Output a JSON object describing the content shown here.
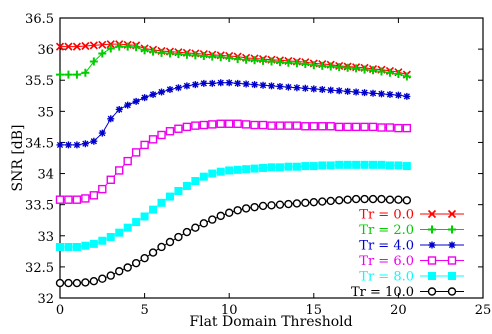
{
  "chart_data": {
    "type": "line",
    "title": "",
    "xlabel": "Flat Domain Threshold",
    "ylabel": "SNR [dB]",
    "xlim": [
      0,
      25
    ],
    "ylim": [
      32,
      36.5
    ],
    "xticks": [
      "0",
      "5",
      "10",
      "15",
      "20",
      "25"
    ],
    "yticks": [
      "32",
      "32.5",
      "33",
      "33.5",
      "34",
      "34.5",
      "35",
      "35.5",
      "36",
      "36.5"
    ],
    "grid": false,
    "legend_position": "bottom-right",
    "x": [
      0,
      0.5,
      1,
      1.5,
      2,
      2.5,
      3,
      3.5,
      4,
      4.5,
      5,
      5.5,
      6,
      6.5,
      7,
      7.5,
      8,
      8.5,
      9,
      9.5,
      10,
      10.5,
      11,
      11.5,
      12,
      12.5,
      13,
      13.5,
      14,
      14.5,
      15,
      15.5,
      16,
      16.5,
      17,
      17.5,
      18,
      18.5,
      19,
      19.5,
      20,
      20.5
    ],
    "series": [
      {
        "name": "Tr = 0.0",
        "color": "#ff0000",
        "marker": "x",
        "values": [
          36.04,
          36.04,
          36.04,
          36.05,
          36.06,
          36.07,
          36.08,
          36.08,
          36.07,
          36.06,
          36.01,
          35.99,
          35.97,
          35.96,
          35.95,
          35.94,
          35.93,
          35.92,
          35.91,
          35.9,
          35.89,
          35.88,
          35.86,
          35.85,
          35.84,
          35.83,
          35.82,
          35.81,
          35.8,
          35.79,
          35.77,
          35.76,
          35.75,
          35.73,
          35.72,
          35.71,
          35.7,
          35.68,
          35.67,
          35.65,
          35.63,
          35.59
        ]
      },
      {
        "name": "Tr = 2.0",
        "color": "#00cc00",
        "marker": "plus",
        "values": [
          35.59,
          35.59,
          35.59,
          35.62,
          35.8,
          35.93,
          36.01,
          36.04,
          36.04,
          36.03,
          35.98,
          35.96,
          35.94,
          35.93,
          35.92,
          35.91,
          35.9,
          35.89,
          35.88,
          35.87,
          35.86,
          35.84,
          35.83,
          35.82,
          35.81,
          35.8,
          35.79,
          35.78,
          35.77,
          35.76,
          35.74,
          35.73,
          35.72,
          35.71,
          35.7,
          35.69,
          35.67,
          35.66,
          35.64,
          35.62,
          35.6,
          35.56
        ]
      },
      {
        "name": "Tr = 4.0",
        "color": "#0000cc",
        "marker": "star",
        "values": [
          34.46,
          34.46,
          34.46,
          34.48,
          34.52,
          34.65,
          34.88,
          35.03,
          35.1,
          35.16,
          35.22,
          35.27,
          35.31,
          35.35,
          35.38,
          35.41,
          35.43,
          35.45,
          35.45,
          35.46,
          35.46,
          35.45,
          35.44,
          35.43,
          35.42,
          35.41,
          35.4,
          35.39,
          35.38,
          35.37,
          35.36,
          35.35,
          35.34,
          35.33,
          35.32,
          35.31,
          35.3,
          35.29,
          35.28,
          35.27,
          35.26,
          35.24
        ]
      },
      {
        "name": "Tr = 6.0",
        "color": "#ee00ee",
        "marker": "square",
        "values": [
          33.58,
          33.58,
          33.58,
          33.6,
          33.65,
          33.75,
          33.9,
          34.05,
          34.2,
          34.34,
          34.46,
          34.55,
          34.62,
          34.68,
          34.72,
          34.75,
          34.77,
          34.78,
          34.79,
          34.8,
          34.8,
          34.8,
          34.79,
          34.78,
          34.78,
          34.77,
          34.77,
          34.77,
          34.77,
          34.76,
          34.76,
          34.76,
          34.76,
          34.75,
          34.75,
          34.75,
          34.75,
          34.75,
          34.74,
          34.74,
          34.73,
          34.73
        ]
      },
      {
        "name": "Tr = 8.0",
        "color": "#00ffff",
        "marker": "filled-square",
        "values": [
          32.82,
          32.82,
          32.82,
          32.84,
          32.87,
          32.92,
          32.98,
          33.05,
          33.13,
          33.22,
          33.31,
          33.42,
          33.53,
          33.63,
          33.72,
          33.8,
          33.88,
          33.95,
          34.0,
          34.03,
          34.05,
          34.06,
          34.07,
          34.08,
          34.09,
          34.1,
          34.1,
          34.11,
          34.11,
          34.12,
          34.12,
          34.13,
          34.13,
          34.14,
          34.14,
          34.14,
          34.14,
          34.14,
          34.14,
          34.13,
          34.13,
          34.12
        ]
      },
      {
        "name": "Tr = 10.0",
        "color": "#000000",
        "marker": "circle",
        "values": [
          32.24,
          32.24,
          32.24,
          32.25,
          32.27,
          32.31,
          32.36,
          32.43,
          32.49,
          32.56,
          32.64,
          32.73,
          32.82,
          32.9,
          32.98,
          33.06,
          33.13,
          33.2,
          33.26,
          33.32,
          33.37,
          33.41,
          33.44,
          33.46,
          33.48,
          33.49,
          33.5,
          33.51,
          33.52,
          33.53,
          33.54,
          33.55,
          33.56,
          33.57,
          33.58,
          33.59,
          33.59,
          33.59,
          33.59,
          33.58,
          33.58,
          33.57
        ]
      }
    ]
  }
}
